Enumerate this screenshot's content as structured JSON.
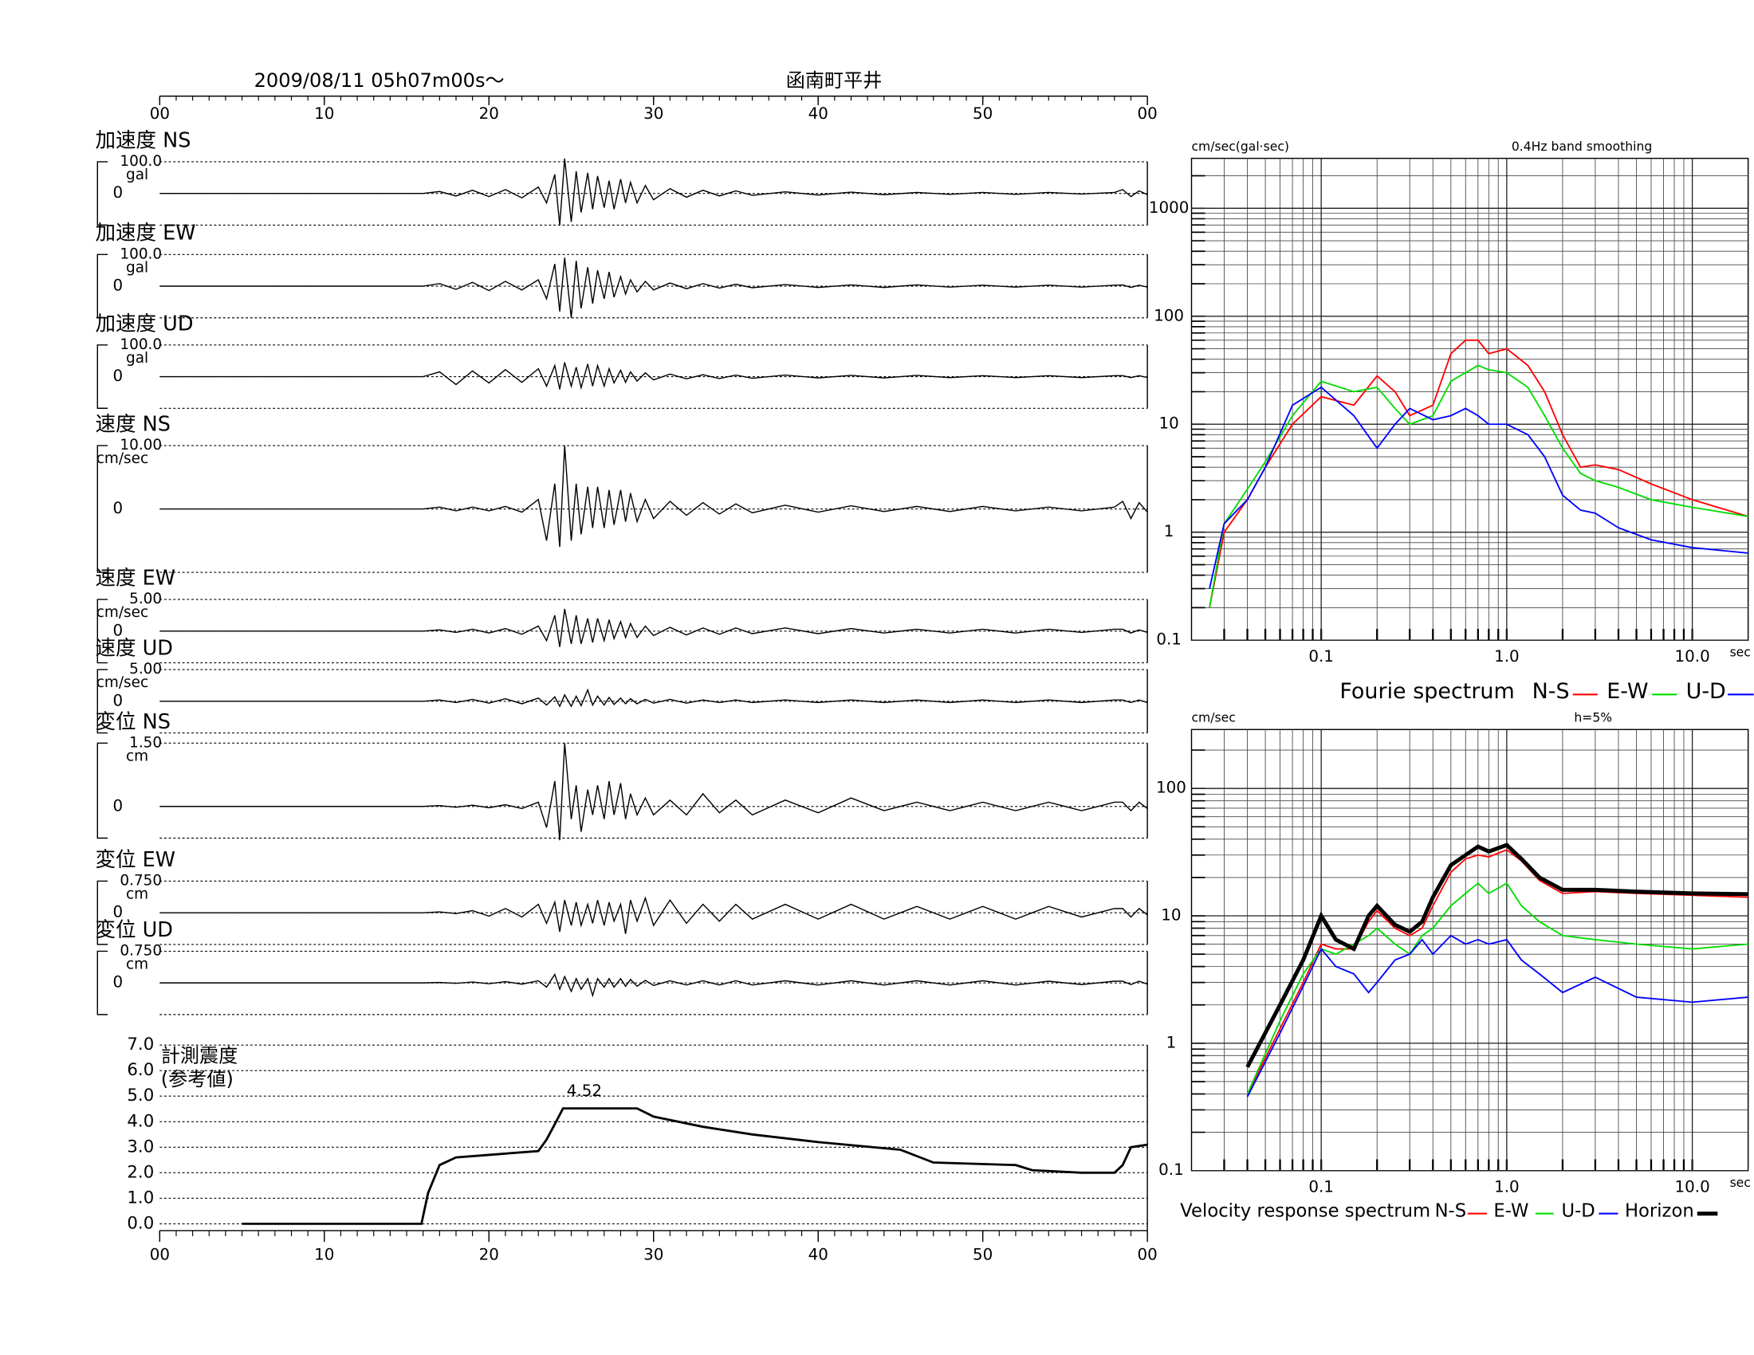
{
  "chart_data": [
    {
      "type": "waveform",
      "title": "2009/08/11  05h07m00s～",
      "station": "函南町平井",
      "xlim": [
        0,
        60
      ],
      "xticks": [
        {
          "value": 0,
          "label": "00"
        },
        10,
        20,
        30,
        40,
        50,
        {
          "value": 60,
          "label": "00"
        }
      ],
      "x": [
        0,
        16,
        17,
        18,
        19,
        20,
        21,
        22,
        23,
        23.5,
        24,
        24.3,
        24.6,
        25,
        25.3,
        25.6,
        26,
        26.3,
        26.6,
        27,
        27.3,
        27.6,
        28,
        28.3,
        28.6,
        29,
        29.5,
        30,
        31,
        32,
        33,
        34,
        35,
        36,
        38,
        40,
        42,
        44,
        46,
        48,
        50,
        52,
        54,
        56,
        58,
        58.5,
        59,
        59.5,
        60
      ],
      "panels": [
        {
          "name": "加速度 NS",
          "unit": "gal",
          "ylim": [
            -100,
            100
          ],
          "yticks": [
            {
              "value": 100,
              "label": "100.0"
            },
            0
          ],
          "values": [
            0,
            0,
            6,
            -8,
            10,
            -10,
            12,
            -14,
            20,
            -30,
            60,
            -100,
            110,
            -90,
            70,
            -60,
            65,
            -50,
            55,
            -45,
            40,
            -50,
            45,
            -30,
            35,
            -30,
            25,
            -20,
            15,
            -12,
            10,
            -8,
            8,
            -6,
            5,
            -5,
            4,
            -4,
            3,
            -3,
            3,
            -3,
            3,
            -2,
            3,
            12,
            -10,
            8,
            -4
          ]
        },
        {
          "name": "加速度 EW",
          "unit": "gal",
          "ylim": [
            -100,
            100
          ],
          "yticks": [
            {
              "value": 100,
              "label": "100.0"
            },
            0
          ],
          "values": [
            0,
            0,
            8,
            -10,
            12,
            -14,
            15,
            -12,
            20,
            -40,
            70,
            -80,
            90,
            -100,
            80,
            -70,
            60,
            -55,
            50,
            -40,
            45,
            -35,
            30,
            -25,
            20,
            -18,
            15,
            -12,
            10,
            -8,
            8,
            -6,
            6,
            -5,
            5,
            -4,
            4,
            -4,
            4,
            -3,
            3,
            -3,
            3,
            -3,
            3,
            4,
            -4,
            3,
            -3
          ]
        },
        {
          "name": "加速度 UD",
          "unit": "gal",
          "ylim": [
            -100,
            100
          ],
          "yticks": [
            {
              "value": 100,
              "label": "100.0"
            },
            0
          ],
          "values": [
            0,
            0,
            15,
            -25,
            18,
            -20,
            22,
            -18,
            25,
            -30,
            35,
            -40,
            45,
            -30,
            30,
            -35,
            40,
            -30,
            35,
            -30,
            25,
            -20,
            20,
            -18,
            15,
            -14,
            12,
            -10,
            8,
            -7,
            6,
            -6,
            5,
            -5,
            5,
            -4,
            4,
            -4,
            4,
            -3,
            3,
            -3,
            3,
            -3,
            3,
            3,
            -3,
            3,
            -3
          ]
        },
        {
          "name": "速度 NS",
          "unit": "cm/sec",
          "ylim": [
            -10,
            10
          ],
          "yticks": [
            {
              "value": 10,
              "label": "10.00"
            },
            0
          ],
          "values": [
            0,
            0,
            0.3,
            -0.3,
            0.3,
            -0.3,
            0.4,
            -0.5,
            1.5,
            -5,
            4,
            -6,
            10,
            -5,
            4,
            -4,
            3.5,
            -3,
            3.5,
            -3,
            3,
            -2.5,
            3,
            -2,
            2.5,
            -2,
            1.5,
            -1.5,
            1.2,
            -1,
            1,
            -0.8,
            0.8,
            -0.6,
            0.6,
            -0.5,
            0.5,
            -0.4,
            0.4,
            -0.4,
            0.4,
            -0.3,
            0.3,
            -0.3,
            0.3,
            1.2,
            -1.5,
            1,
            -0.5
          ]
        },
        {
          "name": "速度 EW",
          "unit": "cm/sec",
          "ylim": [
            -5,
            5
          ],
          "yticks": [
            {
              "value": 5,
              "label": "5.00"
            },
            0
          ],
          "values": [
            0,
            0,
            0.2,
            -0.2,
            0.3,
            -0.3,
            0.4,
            -0.5,
            0.8,
            -1.5,
            2.5,
            -2.5,
            3.5,
            -2,
            2.5,
            -2,
            2,
            -1.8,
            2,
            -1.5,
            1.8,
            -1.2,
            1.5,
            -1,
            1.2,
            -1,
            0.8,
            -0.7,
            0.6,
            -0.6,
            0.5,
            -0.5,
            0.5,
            -0.4,
            0.5,
            -0.4,
            0.4,
            -0.3,
            0.3,
            -0.3,
            0.3,
            -0.3,
            0.3,
            -0.2,
            0.3,
            0.3,
            -0.3,
            0.2,
            -0.2
          ]
        },
        {
          "name": "速度 UD",
          "unit": "cm/sec",
          "ylim": [
            -5,
            5
          ],
          "yticks": [
            {
              "value": 5,
              "label": "5.00"
            },
            0
          ],
          "values": [
            0,
            0,
            0.2,
            -0.2,
            0.3,
            -0.3,
            0.4,
            -0.4,
            0.5,
            -0.6,
            0.7,
            -0.8,
            1,
            -0.8,
            0.8,
            -0.7,
            1.8,
            -0.6,
            0.8,
            -0.6,
            0.6,
            -0.5,
            0.5,
            -0.4,
            0.4,
            -0.4,
            0.3,
            -0.3,
            0.3,
            -0.3,
            0.2,
            -0.2,
            0.2,
            -0.2,
            0.2,
            -0.2,
            0.2,
            -0.2,
            0.2,
            -0.2,
            0.2,
            -0.2,
            0.2,
            -0.2,
            0.2,
            0.2,
            -0.2,
            0.2,
            -0.2
          ]
        },
        {
          "name": "変位 NS",
          "unit": "cm",
          "ylim": [
            -0.75,
            1.5
          ],
          "yticks": [
            {
              "value": 1.5,
              "label": "1.50"
            },
            0
          ],
          "values": [
            0,
            0,
            0.02,
            -0.02,
            0.03,
            -0.03,
            0.04,
            -0.05,
            0.1,
            -0.5,
            0.6,
            -0.8,
            1.5,
            -0.3,
            0.5,
            -0.6,
            0.4,
            -0.2,
            0.5,
            -0.3,
            0.6,
            -0.2,
            0.55,
            -0.3,
            0.3,
            -0.2,
            0.2,
            -0.2,
            0.15,
            -0.2,
            0.3,
            -0.15,
            0.15,
            -0.2,
            0.15,
            -0.15,
            0.2,
            -0.1,
            0.1,
            -0.1,
            0.1,
            -0.1,
            0.1,
            -0.1,
            0.1,
            0.1,
            -0.1,
            0.1,
            -0.05
          ]
        },
        {
          "name": "変位 EW",
          "unit": "cm",
          "ylim": [
            -0.75,
            0.75
          ],
          "yticks": [
            {
              "value": 0.75,
              "label": "0.750"
            },
            0
          ],
          "values": [
            0,
            0,
            0.02,
            -0.02,
            0.05,
            -0.08,
            0.1,
            -0.1,
            0.2,
            -0.25,
            0.25,
            -0.45,
            0.3,
            -0.3,
            0.25,
            -0.3,
            0.2,
            -0.25,
            0.3,
            -0.3,
            0.25,
            -0.2,
            0.2,
            -0.5,
            0.3,
            -0.2,
            0.35,
            -0.3,
            0.3,
            -0.25,
            0.2,
            -0.2,
            0.2,
            -0.15,
            0.2,
            -0.15,
            0.2,
            -0.15,
            0.15,
            -0.15,
            0.15,
            -0.15,
            0.15,
            -0.1,
            0.1,
            0.1,
            -0.1,
            0.1,
            -0.05
          ]
        },
        {
          "name": "変位 UD",
          "unit": "cm",
          "ylim": [
            -0.75,
            0.75
          ],
          "yticks": [
            {
              "value": 0.75,
              "label": "0.750"
            },
            0
          ],
          "values": [
            0,
            0,
            0.01,
            -0.01,
            0.02,
            -0.02,
            0.03,
            -0.03,
            0.05,
            -0.1,
            0.2,
            -0.15,
            0.15,
            -0.2,
            0.1,
            -0.15,
            0.1,
            -0.3,
            0.1,
            -0.1,
            0.1,
            -0.1,
            0.1,
            -0.08,
            0.08,
            -0.08,
            0.06,
            -0.06,
            0.05,
            -0.05,
            0.05,
            -0.05,
            0.05,
            -0.05,
            0.05,
            -0.05,
            0.05,
            -0.05,
            0.05,
            -0.05,
            0.05,
            -0.05,
            0.04,
            -0.04,
            0.04,
            0.04,
            -0.04,
            0.04,
            -0.03
          ]
        }
      ]
    },
    {
      "type": "line",
      "title": "計測震度",
      "subtitle": "(参考値)",
      "xlim": [
        0,
        60
      ],
      "xticks": [
        {
          "value": 0,
          "label": "00"
        },
        10,
        20,
        30,
        40,
        50,
        {
          "value": 60,
          "label": "00"
        }
      ],
      "ylim": [
        0,
        7
      ],
      "yticks": [
        {
          "value": 0,
          "label": "0.0"
        },
        {
          "value": 1,
          "label": "1.0"
        },
        {
          "value": 2,
          "label": "2.0"
        },
        {
          "value": 3,
          "label": "3.0"
        },
        {
          "value": 4,
          "label": "4.0"
        },
        {
          "value": 5,
          "label": "5.0"
        },
        {
          "value": 6,
          "label": "6.0"
        },
        {
          "value": 7,
          "label": "7.0"
        }
      ],
      "x": [
        5,
        15.9,
        16.3,
        17,
        18,
        20,
        23,
        23.5,
        24,
        24.5,
        26,
        29,
        30,
        33,
        36,
        40,
        45,
        47,
        52,
        53,
        56,
        58,
        58.5,
        59,
        60
      ],
      "values": [
        0,
        0,
        1.2,
        2.3,
        2.6,
        2.7,
        2.85,
        3.3,
        3.9,
        4.52,
        4.52,
        4.52,
        4.2,
        3.8,
        3.5,
        3.2,
        2.9,
        2.4,
        2.3,
        2.1,
        2.0,
        2.0,
        2.3,
        3.0,
        3.1
      ],
      "peak": {
        "x": 26,
        "value": 4.52
      },
      "grid": true,
      "color": "#000000"
    },
    {
      "type": "loglog",
      "unit": "cm/sec(gal·sec)",
      "note": "0.4Hz band smoothing",
      "xunit": "sec",
      "legend_title": "Fourie spectrum",
      "xscale": "log",
      "yscale": "log",
      "grid": true,
      "xlim": [
        0.02,
        20
      ],
      "xticks": [
        0.1,
        {
          "value": 1,
          "label": "1.0"
        },
        {
          "value": 10,
          "label": "10.0"
        }
      ],
      "ylim": [
        0.1,
        2900
      ],
      "yticks": [
        0.1,
        1,
        10,
        100,
        1000
      ],
      "x": [
        0.025,
        0.03,
        0.04,
        0.05,
        0.07,
        0.1,
        0.15,
        0.2,
        0.25,
        0.3,
        0.4,
        0.5,
        0.6,
        0.7,
        0.8,
        1.0,
        1.3,
        1.6,
        2,
        2.5,
        3,
        4,
        6,
        10,
        20
      ],
      "series": [
        {
          "name": "N-S",
          "color": "#ff0000",
          "values": [
            0.2,
            1,
            2,
            4,
            10,
            18,
            15,
            28,
            20,
            12,
            15,
            45,
            60,
            60,
            45,
            50,
            35,
            20,
            8,
            4,
            4.2,
            3.8,
            2.8,
            2,
            1.4
          ]
        },
        {
          "name": "E-W",
          "color": "#00dd00",
          "values": [
            0.2,
            1.2,
            2.5,
            4.5,
            12,
            25,
            20,
            22,
            14,
            10,
            12,
            25,
            30,
            35,
            32,
            30,
            22,
            12,
            6,
            3.5,
            3,
            2.6,
            2,
            1.7,
            1.4
          ]
        },
        {
          "name": "U-D",
          "color": "#0000ff",
          "values": [
            0.3,
            1.2,
            2,
            4,
            15,
            22,
            12,
            6,
            10,
            14,
            11,
            12,
            14,
            12,
            10,
            10,
            8,
            5,
            2.2,
            1.6,
            1.5,
            1.1,
            0.85,
            0.72,
            0.64
          ]
        }
      ]
    },
    {
      "type": "loglog",
      "unit": "cm/sec",
      "note": "h=5%",
      "xunit": "sec",
      "legend_title": "Velocity response spectrum",
      "xscale": "log",
      "yscale": "log",
      "grid": true,
      "xlim": [
        0.02,
        20
      ],
      "xticks": [
        0.1,
        {
          "value": 1,
          "label": "1.0"
        },
        {
          "value": 10,
          "label": "10.0"
        }
      ],
      "ylim": [
        0.1,
        290
      ],
      "yticks": [
        0.1,
        1,
        10,
        100
      ],
      "x": [
        0.04,
        0.06,
        0.08,
        0.1,
        0.12,
        0.15,
        0.18,
        0.2,
        0.25,
        0.3,
        0.35,
        0.4,
        0.5,
        0.6,
        0.7,
        0.8,
        1.0,
        1.2,
        1.5,
        2,
        3,
        5,
        10,
        20
      ],
      "series": [
        {
          "name": "N-S",
          "color": "#ff0000",
          "values": [
            0.4,
            1.3,
            3,
            6,
            5.5,
            5.5,
            9,
            11,
            8,
            7,
            8,
            12,
            22,
            28,
            30,
            29,
            33,
            27,
            19,
            15,
            15.5,
            15,
            14.5,
            14
          ]
        },
        {
          "name": "E-W",
          "color": "#00dd00",
          "values": [
            0.4,
            1.5,
            3.5,
            5.5,
            5,
            6,
            7,
            8,
            6,
            5,
            7,
            8,
            12,
            15,
            18,
            15,
            18,
            12,
            9,
            7,
            6.5,
            6,
            5.5,
            6
          ]
        },
        {
          "name": "U-D",
          "color": "#0000ff",
          "values": [
            0.38,
            1.2,
            2.8,
            5.5,
            4,
            3.5,
            2.5,
            3,
            4.5,
            5,
            6.5,
            5,
            7,
            6,
            6.5,
            6,
            6.5,
            4.5,
            3.5,
            2.5,
            3.3,
            2.3,
            2.1,
            2.3
          ]
        },
        {
          "name": "Horizon",
          "color": "#000000",
          "values": [
            0.65,
            2,
            4.5,
            10,
            6.5,
            5.5,
            10,
            12,
            8.5,
            7.5,
            9,
            14,
            25,
            30,
            35,
            32,
            36,
            28,
            20,
            16,
            16,
            15.5,
            15,
            14.8
          ]
        }
      ]
    }
  ]
}
